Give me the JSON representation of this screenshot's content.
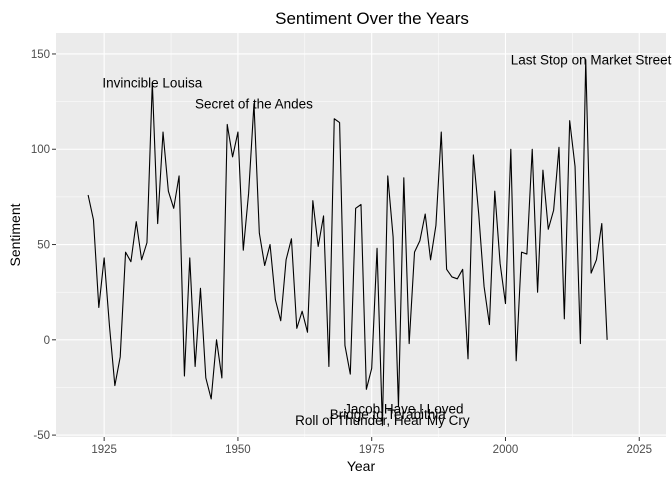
{
  "chart_data": {
    "type": "line",
    "title": "Sentiment Over the Years",
    "xlabel": "Year",
    "ylabel": "Sentiment",
    "xlim": [
      1916,
      2030
    ],
    "ylim": [
      -51,
      161
    ],
    "x_ticks": [
      1925,
      1950,
      1975,
      2000,
      2025
    ],
    "y_ticks": [
      -50,
      0,
      50,
      100,
      150
    ],
    "grid": true,
    "background": "#ebebeb",
    "line_color": "#000000",
    "series": [
      {
        "x": [
          1922,
          1923,
          1924,
          1925,
          1926,
          1927,
          1928,
          1929,
          1930,
          1931,
          1932,
          1933,
          1934,
          1935,
          1936,
          1937,
          1938,
          1939,
          1940,
          1941,
          1942,
          1943,
          1944,
          1945,
          1946,
          1947,
          1948,
          1949,
          1950,
          1951,
          1952,
          1953,
          1954,
          1955,
          1956,
          1957,
          1958,
          1959,
          1960,
          1961,
          1962,
          1963,
          1964,
          1965,
          1966,
          1967,
          1968,
          1969,
          1970,
          1971,
          1972,
          1973,
          1974,
          1975,
          1976,
          1977,
          1978,
          1979,
          1980,
          1981,
          1982,
          1983,
          1984,
          1985,
          1986,
          1987,
          1988,
          1989,
          1990,
          1991,
          1992,
          1993,
          1994,
          1995,
          1996,
          1997,
          1998,
          1999,
          2000,
          2001,
          2002,
          2003,
          2004,
          2005,
          2006,
          2007,
          2008,
          2009,
          2010,
          2011,
          2012,
          2013,
          2014,
          2015,
          2016,
          2017,
          2018,
          2019
        ],
        "y": [
          76,
          63,
          17,
          43,
          7,
          -24,
          -9,
          46,
          41,
          62,
          42,
          51,
          135,
          61,
          109,
          78,
          69,
          86,
          -19,
          43,
          -14,
          27,
          -20,
          -31,
          0,
          -20,
          113,
          96,
          109,
          47,
          77,
          124,
          56,
          39,
          50,
          21,
          10,
          42,
          53,
          6,
          15,
          4,
          73,
          49,
          65,
          -14,
          116,
          114,
          -3,
          -18,
          69,
          71,
          -26,
          -15,
          48,
          -45,
          86,
          54,
          -35,
          85,
          -2,
          46,
          52,
          66,
          42,
          60,
          109,
          37,
          33,
          32,
          37,
          -10,
          97,
          66,
          28,
          8,
          78,
          40,
          19,
          100,
          -11,
          46,
          45,
          100,
          25,
          89,
          58,
          68,
          101,
          11,
          115,
          91,
          -2,
          147,
          35,
          42,
          61,
          0
        ]
      }
    ],
    "annotations": [
      {
        "text": "Last Stop on Market Street",
        "x": 2016,
        "y": 147
      },
      {
        "text": "Invincible Louisa",
        "x": 1934,
        "y": 135
      },
      {
        "text": "Secret of the Andes",
        "x": 1953,
        "y": 124
      },
      {
        "text": "Jacob Have I Loved",
        "x": 1981,
        "y": -36
      },
      {
        "text": "Bridge to Terabithia",
        "x": 1978,
        "y": -39
      },
      {
        "text": "Roll of Thunder, Hear My Cry",
        "x": 1977,
        "y": -42
      }
    ]
  }
}
